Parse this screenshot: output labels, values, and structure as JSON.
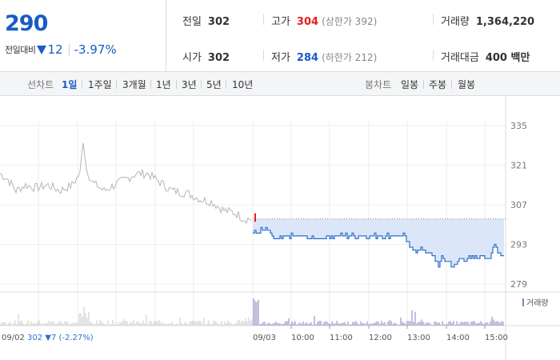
{
  "summary": {
    "price": "290",
    "change_label": "전일대비",
    "change_abs": "12",
    "change_pct": "-3.97%",
    "prev_close": {
      "label": "전일",
      "value": "302"
    },
    "high": {
      "label": "고가",
      "value": "304",
      "limit": "(상한가 392)"
    },
    "volume": {
      "label": "거래량",
      "value": "1,364,220"
    },
    "open": {
      "label": "시가",
      "value": "302"
    },
    "low": {
      "label": "저가",
      "value": "284",
      "limit": "(하한가 212)"
    },
    "trade_value": {
      "label": "거래대금",
      "value": "400 백만"
    },
    "colors": {
      "up": "#e0211b",
      "down": "#1a5bc4"
    }
  },
  "toolbar": {
    "line_chart_label": "선차트",
    "periods": [
      "1일",
      "1주일",
      "3개월",
      "1년",
      "3년",
      "5년",
      "10년"
    ],
    "active_period": "1일",
    "candle_chart_label": "봉차트",
    "candles": [
      "일봉",
      "주봉",
      "월봉"
    ]
  },
  "chart_data": {
    "type": "line",
    "ylim": [
      279,
      335
    ],
    "yticks": [
      335,
      321,
      307,
      293,
      279
    ],
    "prev_close": 302,
    "prev_day_date": "09/02",
    "prev_day_summary": "302 ▼7 (-2.27%)",
    "today_date": "09/03",
    "time_ticks": [
      "10:00",
      "11:00",
      "12:00",
      "13:00",
      "14:00",
      "15:00"
    ],
    "volume_legend": "거래량",
    "series": [
      {
        "x": [
          "09/02",
          "09/03 09:00",
          "09/03 10:00",
          "09/03 11:00",
          "09/03 12:00",
          "09/03 13:00",
          "09/03 14:00",
          "09/03 15:00",
          "09/03 15:20"
        ],
        "values": [
          317,
          302,
          296,
          296,
          296,
          296,
          287,
          290,
          292
        ]
      }
    ],
    "colors": {
      "prev_line": "#b5b5b5",
      "today_line": "#2f6fce",
      "area": "#dbe7f8",
      "volume_prev": "#c8c8c8",
      "volume_today": "#8a7fc0"
    }
  }
}
